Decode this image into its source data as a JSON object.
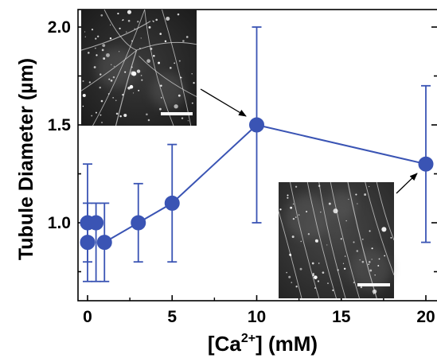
{
  "chart_data": {
    "type": "scatter",
    "xlabel": "[Ca",
    "xlabel_superscript": "2+",
    "xlabel_suffix": "] (mM)",
    "ylabel": "Tubule Diameter (µm)",
    "xlim": [
      -0.5,
      20
    ],
    "ylim": [
      0.62,
      2.1
    ],
    "x_ticks": [
      0,
      5,
      10,
      15,
      20
    ],
    "y_ticks": [
      1.0,
      1.5,
      2.0
    ],
    "x_tick_labels": [
      "0",
      "5",
      "10",
      "15",
      "20"
    ],
    "y_tick_labels": [
      "1.0",
      "1.5",
      "2.0"
    ],
    "marker_color": "#3a54b4",
    "series": [
      {
        "connected": false,
        "points": [
          {
            "x": 0,
            "y": 0.9,
            "err_lo": 0.7,
            "err_hi": 1.1
          },
          {
            "x": 0,
            "y": 1.0,
            "err_lo": 0.8,
            "err_hi": 1.3
          },
          {
            "x": 0.5,
            "y": 1.0,
            "err_lo": 0.7,
            "err_hi": 1.1
          }
        ]
      },
      {
        "connected": true,
        "points": [
          {
            "x": 1,
            "y": 0.9,
            "err_lo": 0.7,
            "err_hi": 1.1
          },
          {
            "x": 3,
            "y": 1.0,
            "err_lo": 0.8,
            "err_hi": 1.2
          },
          {
            "x": 5,
            "y": 1.1,
            "err_lo": 0.8,
            "err_hi": 1.4
          },
          {
            "x": 10,
            "y": 1.5,
            "err_lo": 1.0,
            "err_hi": 2.0
          },
          {
            "x": 20,
            "y": 1.3,
            "err_lo": 0.9,
            "err_hi": 1.7
          }
        ]
      }
    ],
    "insets": [
      {
        "description": "fluorescence micrograph with scale bar",
        "points_to": {
          "x": 10,
          "y": 1.5
        }
      },
      {
        "description": "fluorescence micrograph with scale bar",
        "points_to": {
          "x": 20,
          "y": 1.3
        }
      }
    ]
  }
}
